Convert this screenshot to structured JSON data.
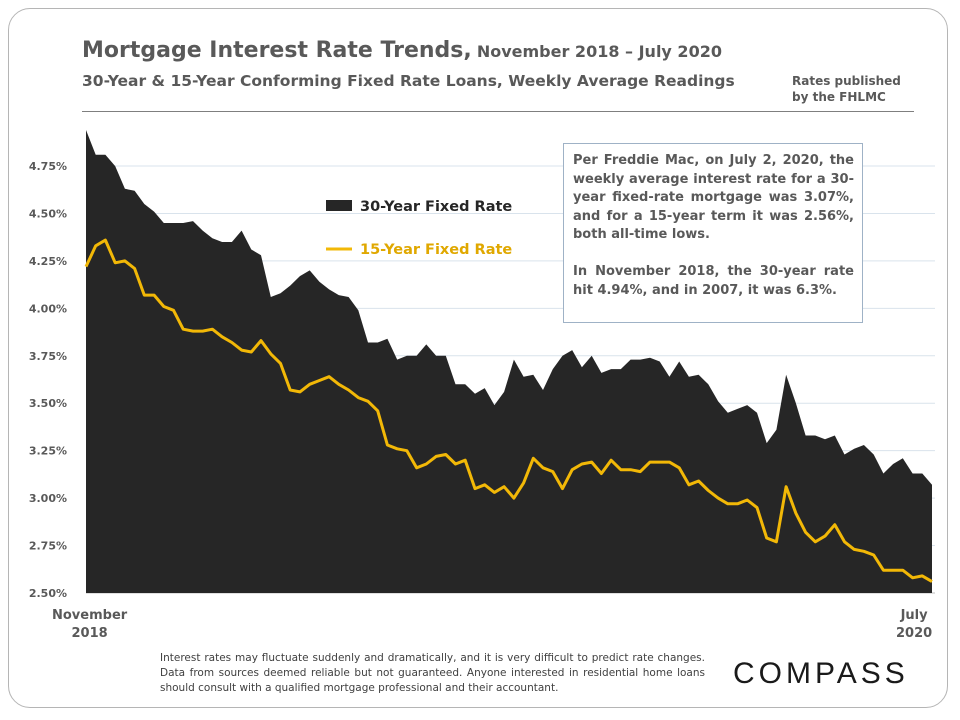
{
  "header": {
    "title_main": "Mortgage Interest Rate Trends,",
    "title_dates": "November 2018 – July 2020",
    "subtitle": "30-Year & 15-Year Conforming  Fixed Rate Loans, Weekly Average Readings",
    "source_note": "Rates published\nby the FHLMC"
  },
  "callout": {
    "paragraph_1": "Per Freddie Mac, on July 2, 2020, the weekly average interest rate for a 30-year fixed-rate mortgage was 3.07%, and for a 15-year term it was 2.56%, both all-time lows.",
    "paragraph_2": "In November 2018, the 30-year rate hit 4.94%, and in 2007, it was 6.3%."
  },
  "footnote": "Interest rates may fluctuate suddenly and dramatically, and it is very difficult to predict rate changes. Data from sources deemed reliable but not guaranteed. Anyone interested in residential home loans should consult with a qualified mortgage professional and their accountant.",
  "logo_text": "COMPASS",
  "x_axis": {
    "start_label": [
      "November",
      "2018"
    ],
    "end_label": [
      "July",
      "2020"
    ]
  },
  "colors": {
    "area_30yr": "#262626",
    "line_15yr": "#f2b807",
    "grid": "#d9e3ec",
    "text": "#595959",
    "callout_border": "#9fb2c6"
  },
  "chart_data": {
    "type": "area",
    "title": "Mortgage Interest Rate Trends, November 2018 – July 2020",
    "x_range": [
      "November 2018",
      "July 2020"
    ],
    "y_ticks": [
      "2.50%",
      "2.75%",
      "3.00%",
      "3.25%",
      "3.50%",
      "3.75%",
      "4.00%",
      "4.25%",
      "4.50%",
      "4.75%"
    ],
    "ylim": [
      2.5,
      4.94
    ],
    "grid": true,
    "legend_position": "top-left",
    "series": [
      {
        "name": "30-Year Fixed Rate",
        "style": "area",
        "values": [
          4.94,
          4.81,
          4.81,
          4.75,
          4.63,
          4.62,
          4.55,
          4.51,
          4.45,
          4.45,
          4.45,
          4.46,
          4.41,
          4.37,
          4.35,
          4.35,
          4.41,
          4.31,
          4.28,
          4.06,
          4.08,
          4.12,
          4.17,
          4.2,
          4.14,
          4.1,
          4.07,
          4.06,
          3.99,
          3.82,
          3.82,
          3.84,
          3.73,
          3.75,
          3.75,
          3.81,
          3.75,
          3.75,
          3.6,
          3.6,
          3.55,
          3.58,
          3.49,
          3.56,
          3.73,
          3.64,
          3.65,
          3.57,
          3.68,
          3.75,
          3.78,
          3.69,
          3.75,
          3.66,
          3.68,
          3.68,
          3.73,
          3.73,
          3.74,
          3.72,
          3.64,
          3.72,
          3.64,
          3.65,
          3.6,
          3.51,
          3.45,
          3.47,
          3.49,
          3.45,
          3.29,
          3.36,
          3.65,
          3.5,
          3.33,
          3.33,
          3.31,
          3.33,
          3.23,
          3.26,
          3.28,
          3.23,
          3.13,
          3.18,
          3.21,
          3.13,
          3.13,
          3.07
        ]
      },
      {
        "name": "15-Year Fixed Rate",
        "style": "line",
        "values": [
          4.22,
          4.33,
          4.36,
          4.24,
          4.25,
          4.21,
          4.07,
          4.07,
          4.01,
          3.99,
          3.89,
          3.88,
          3.88,
          3.89,
          3.85,
          3.82,
          3.78,
          3.77,
          3.83,
          3.76,
          3.71,
          3.57,
          3.56,
          3.6,
          3.62,
          3.64,
          3.6,
          3.57,
          3.53,
          3.51,
          3.46,
          3.28,
          3.26,
          3.25,
          3.16,
          3.18,
          3.22,
          3.23,
          3.18,
          3.2,
          3.05,
          3.07,
          3.03,
          3.06,
          3.0,
          3.08,
          3.21,
          3.16,
          3.14,
          3.05,
          3.15,
          3.18,
          3.19,
          3.13,
          3.2,
          3.15,
          3.15,
          3.14,
          3.19,
          3.19,
          3.19,
          3.16,
          3.07,
          3.09,
          3.04,
          3.0,
          2.97,
          2.97,
          2.99,
          2.95,
          2.79,
          2.77,
          3.06,
          2.92,
          2.82,
          2.77,
          2.8,
          2.86,
          2.77,
          2.73,
          2.72,
          2.7,
          2.62,
          2.62,
          2.62,
          2.58,
          2.59,
          2.56
        ]
      }
    ]
  }
}
